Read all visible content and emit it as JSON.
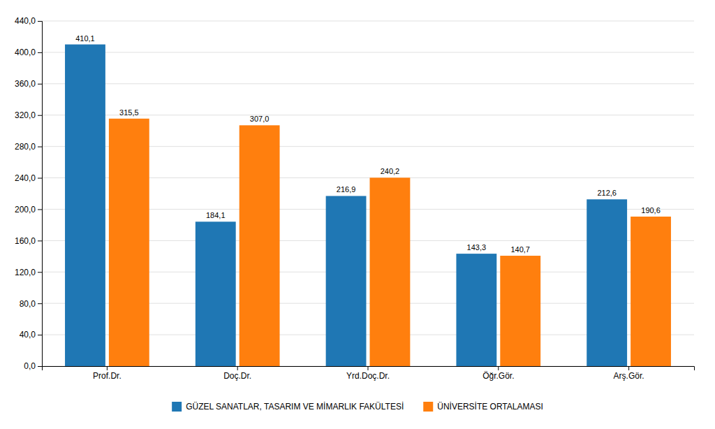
{
  "chart_data": {
    "type": "bar",
    "categories": [
      "Prof.Dr.",
      "Doç.Dr.",
      "Yrd.Doç.Dr.",
      "Öğr.Gör.",
      "Arş.Gör."
    ],
    "series": [
      {
        "name": "GÜZEL SANATLAR, TASARIM VE MİMARLIK FAKÜLTESİ",
        "values": [
          410.1,
          184.1,
          216.9,
          143.3,
          212.6
        ],
        "value_labels": [
          "410,1",
          "184,1",
          "216,9",
          "143,3",
          "212,6"
        ]
      },
      {
        "name": "ÜNİVERSİTE ORTALAMASI",
        "values": [
          315.5,
          307.0,
          240.2,
          140.7,
          190.6
        ],
        "value_labels": [
          "315,5",
          "307,0",
          "240,2",
          "140,7",
          "190,6"
        ]
      }
    ],
    "ylim": [
      0,
      440
    ],
    "yticks": [
      {
        "value": 0.0,
        "label": "0,0"
      },
      {
        "value": 40.0,
        "label": "40,0"
      },
      {
        "value": 80.0,
        "label": "80,0"
      },
      {
        "value": 120.0,
        "label": "120,0"
      },
      {
        "value": 160.0,
        "label": "160,0"
      },
      {
        "value": 200.0,
        "label": "200,0"
      },
      {
        "value": 240.0,
        "label": "240,0"
      },
      {
        "value": 280.0,
        "label": "280,0"
      },
      {
        "value": 320.0,
        "label": "320,0"
      },
      {
        "value": 360.0,
        "label": "360,0"
      },
      {
        "value": 400.0,
        "label": "400,0"
      },
      {
        "value": 440.0,
        "label": "440,0"
      }
    ],
    "grid": true,
    "data_labels": true,
    "legend": "bottom"
  }
}
